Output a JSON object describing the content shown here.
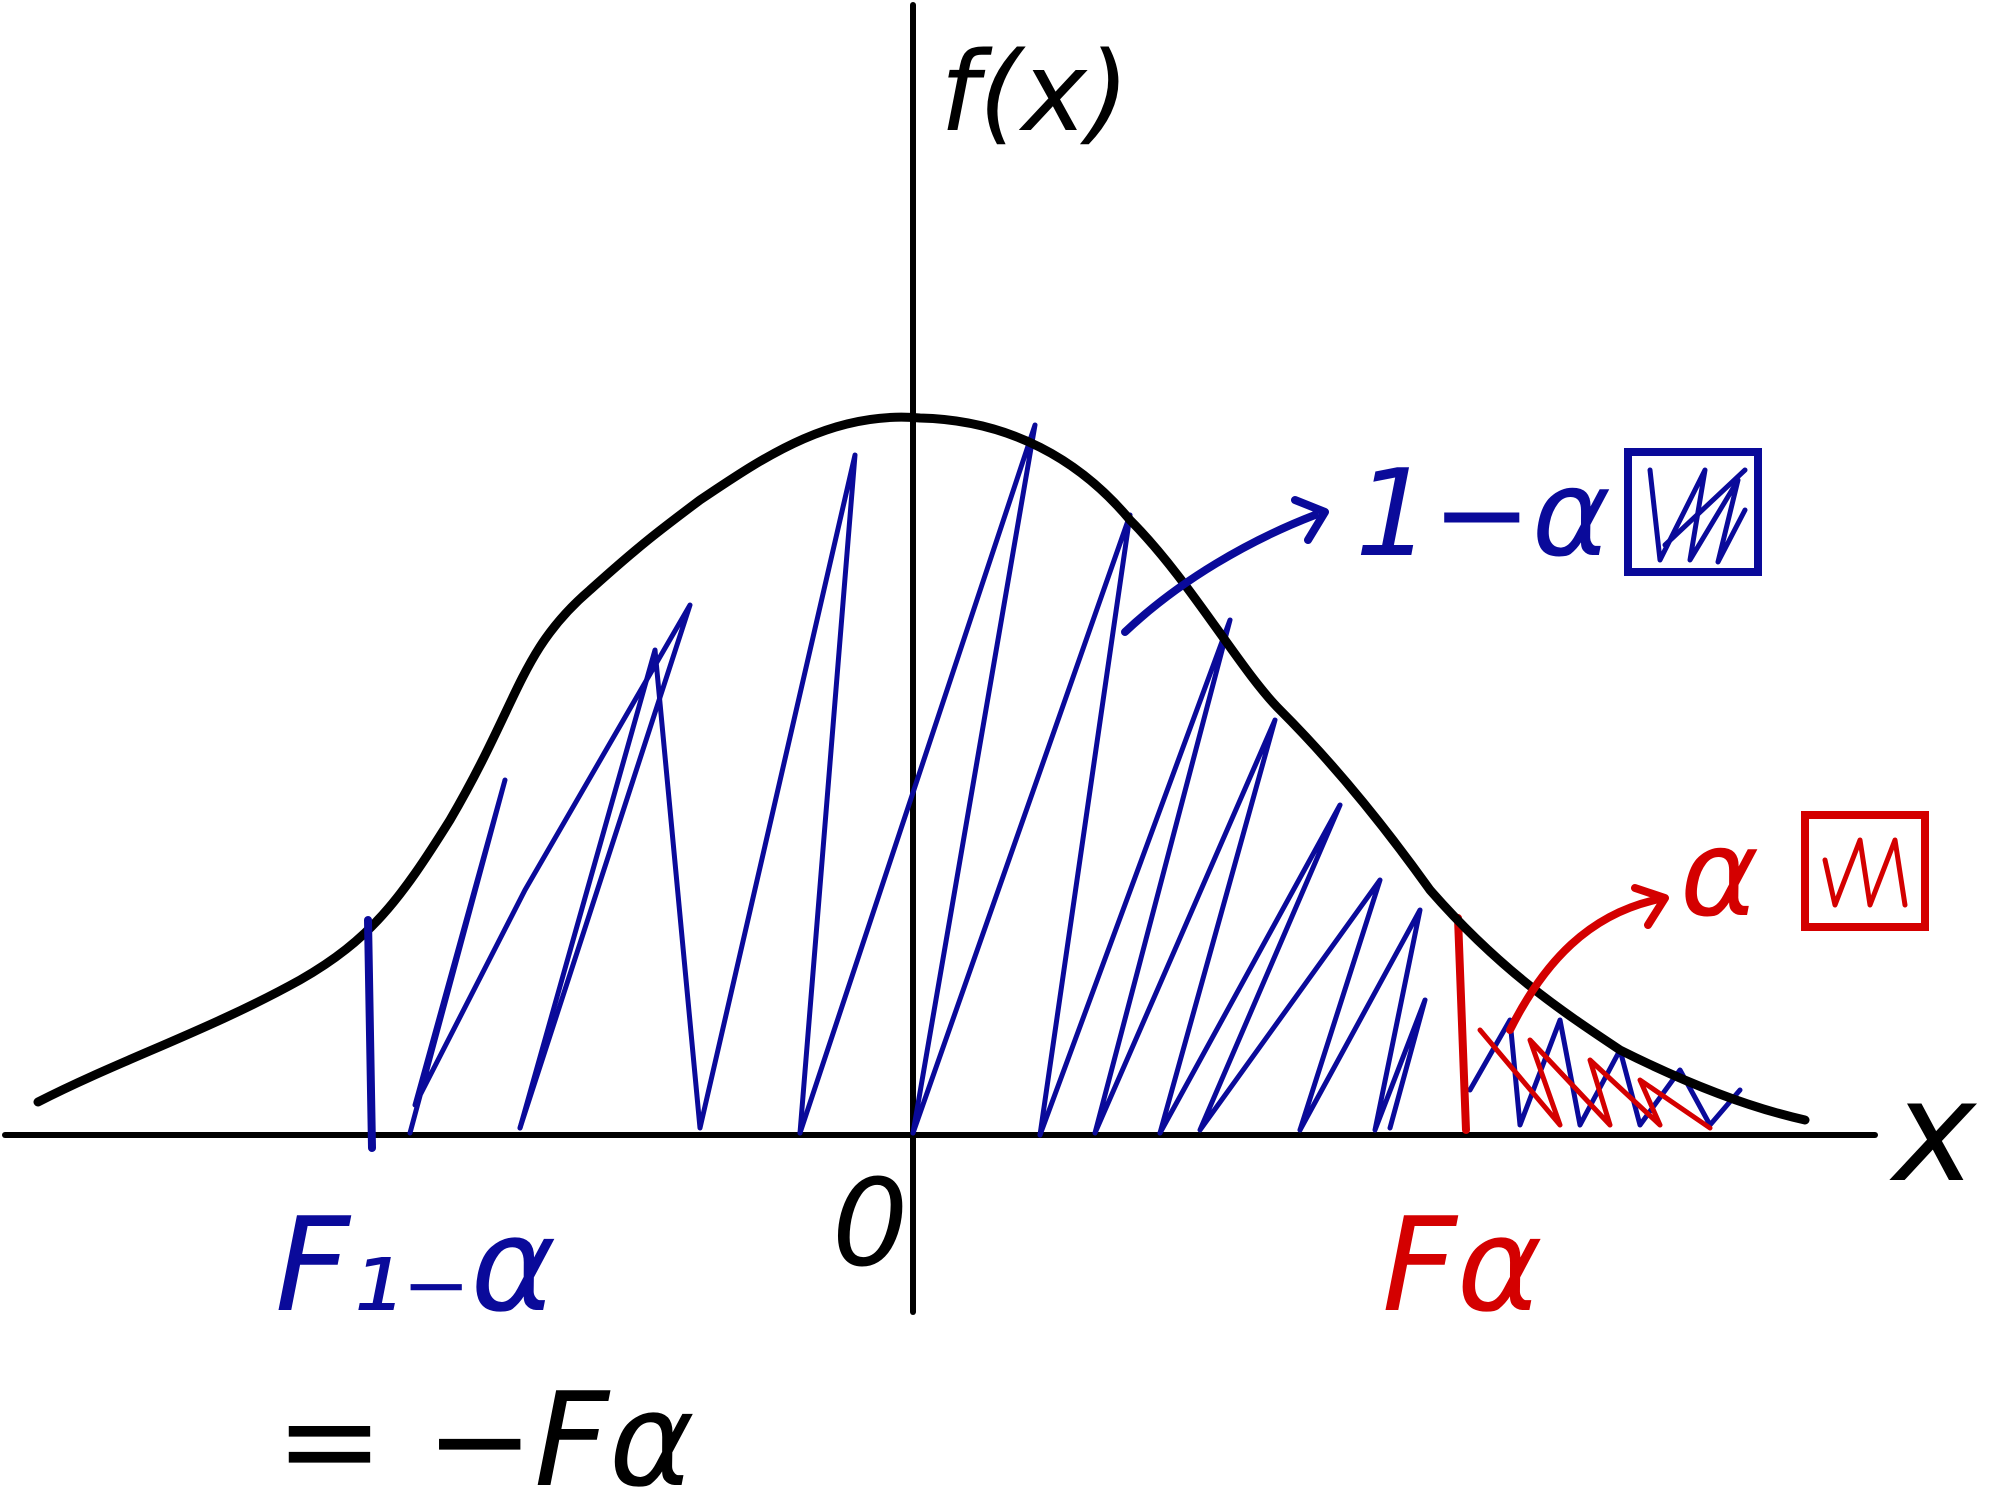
{
  "labels": {
    "y_axis": "f(x)",
    "x_axis": "x",
    "origin": "0",
    "lower_critical": "F₁₋α",
    "lower_equation": "= −Fα",
    "upper_critical": "Fα",
    "center_area": "1−α",
    "tail_area": "α"
  },
  "colors": {
    "curve": "#000000",
    "center_region": "#0a0a9a",
    "tail_region": "#d40000"
  },
  "icons": {
    "center_legend": "hatched-square-icon",
    "tail_legend": "hatched-square-icon"
  }
}
